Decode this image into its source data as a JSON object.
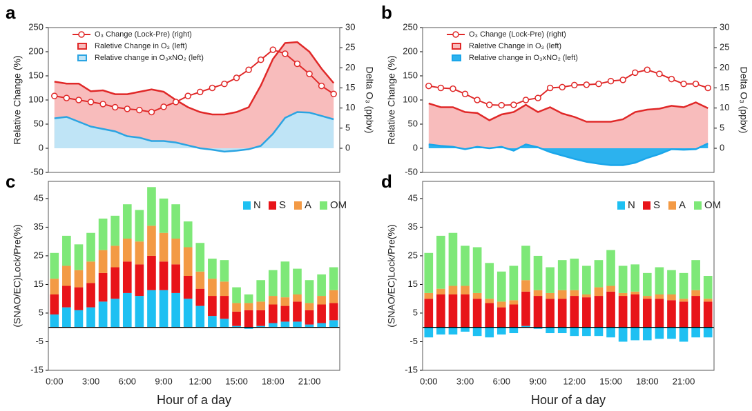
{
  "chart_data": [
    {
      "type": "combo",
      "panel_label": "a",
      "y_label": "Relative Change (%)",
      "y2_label": "Delta O₃ (ppbv)",
      "x": [
        0,
        1,
        2,
        3,
        4,
        5,
        6,
        7,
        8,
        9,
        10,
        11,
        12,
        13,
        14,
        15,
        16,
        17,
        18,
        19,
        20,
        21,
        22,
        23
      ],
      "xlim": [
        -0.5,
        23.5
      ],
      "ylim": [
        -50,
        250
      ],
      "yticks": [
        -50,
        0,
        50,
        100,
        150,
        200,
        250
      ],
      "y2lim": [
        -6,
        30
      ],
      "y2ticks": [
        0,
        5,
        10,
        15,
        20,
        25,
        30
      ],
      "legend": "upper left",
      "series": [
        {
          "name": "O₃ Change (Lock-Pre)  (right)",
          "color": "#e02828",
          "axis": "y2",
          "values": [
            13,
            12.5,
            12,
            11.5,
            11,
            10.2,
            9.8,
            9.5,
            9,
            10.3,
            11.5,
            13,
            14,
            15,
            16,
            17.5,
            19.5,
            22,
            24.5,
            23.5,
            21,
            18.5,
            15.5,
            13.5
          ]
        },
        {
          "name": "Raletive Change in O₃ (left)",
          "color": "#e02828",
          "fill": "#f8bcbc",
          "values": [
            138,
            134,
            134,
            118,
            120,
            112,
            112,
            117,
            122,
            117,
            100,
            85,
            75,
            70,
            70,
            75,
            85,
            130,
            185,
            218,
            220,
            200,
            165,
            135
          ]
        },
        {
          "name": "Relative change in O₃xNO₂ (left)",
          "color": "#2aa4e2",
          "fill": "#bfe4f6",
          "values": [
            62,
            65,
            55,
            45,
            40,
            35,
            25,
            22,
            15,
            15,
            12,
            6,
            0,
            -3,
            -7,
            -5,
            -2,
            5,
            30,
            63,
            75,
            74,
            67,
            60
          ]
        }
      ]
    },
    {
      "type": "combo",
      "panel_label": "b",
      "y_label": "Relative Change (%)",
      "y2_label": "Delta O₃ (ppbv)",
      "x": [
        0,
        1,
        2,
        3,
        4,
        5,
        6,
        7,
        8,
        9,
        10,
        11,
        12,
        13,
        14,
        15,
        16,
        17,
        18,
        19,
        20,
        21,
        22,
        23
      ],
      "xlim": [
        -0.5,
        23.5
      ],
      "ylim": [
        -50,
        250
      ],
      "yticks": [
        -50,
        0,
        50,
        100,
        150,
        200,
        250
      ],
      "y2lim": [
        -6,
        30
      ],
      "y2ticks": [
        0,
        5,
        10,
        15,
        20,
        25,
        30
      ],
      "legend": "upper left",
      "series": [
        {
          "name": "O₃ Change (Lock-Pre)  (right)",
          "color": "#e02828",
          "axis": "y2",
          "values": [
            15.5,
            15,
            14.8,
            13.5,
            12,
            10.8,
            10.7,
            10.8,
            12,
            12.5,
            15,
            15.2,
            15.7,
            15.8,
            16,
            16.7,
            17,
            18.8,
            19.5,
            18.5,
            17.2,
            16,
            16,
            15
          ]
        },
        {
          "name": "Raletive Change in O₃ (left)",
          "color": "#e02828",
          "fill": "#f8bcbc",
          "values": [
            93,
            85,
            85,
            75,
            73,
            58,
            70,
            75,
            90,
            75,
            85,
            72,
            65,
            55,
            55,
            55,
            60,
            75,
            80,
            82,
            88,
            85,
            95,
            83
          ]
        },
        {
          "name": "Relative change in O₃xNO₂ (left)",
          "color": "#1aa6ea",
          "fill": "#2cb2ee",
          "values": [
            8,
            5,
            3,
            -2,
            3,
            0,
            3,
            -5,
            8,
            2,
            -8,
            -15,
            -22,
            -28,
            -32,
            -35,
            -35,
            -30,
            -20,
            -12,
            -2,
            -3,
            -2,
            10
          ]
        }
      ]
    },
    {
      "type": "stacked_bar",
      "panel_label": "c",
      "y_label": "(SNAO/EC)Lock/Pre(%)",
      "x_label": "Hour of a day",
      "categories": [
        "0:00",
        null,
        null,
        "3:00",
        null,
        null,
        "6:00",
        null,
        null,
        "9:00",
        null,
        null,
        "12:00",
        null,
        null,
        "15:00",
        null,
        null,
        "18:00",
        null,
        null,
        "21:00",
        null,
        null
      ],
      "ylim": [
        -15,
        51
      ],
      "yticks": [
        -15,
        -5,
        5,
        15,
        25,
        35,
        45
      ],
      "legend": "upper right",
      "series": [
        {
          "name": "N",
          "color": "#1ec0f2",
          "values": [
            4.5,
            7,
            6,
            7,
            9,
            10,
            12,
            11,
            13,
            13,
            12,
            10,
            7.5,
            4,
            3,
            0.5,
            -0.5,
            0.5,
            1.5,
            2,
            2,
            1,
            1.5,
            2.5
          ]
        },
        {
          "name": "S",
          "color": "#e81419",
          "values": [
            7,
            7.5,
            8,
            8.5,
            10,
            11,
            11,
            11,
            12,
            10,
            10,
            8,
            6,
            7,
            8,
            5,
            6,
            5.5,
            6.5,
            5.5,
            7,
            5,
            6.5,
            6
          ]
        },
        {
          "name": "A",
          "color": "#f39a45",
          "values": [
            5.5,
            7,
            6,
            7.5,
            8,
            7.5,
            8,
            8,
            10.5,
            10,
            9,
            10,
            6,
            6,
            5,
            3,
            2.5,
            3,
            3,
            3,
            2.5,
            2.5,
            3,
            4.5
          ]
        },
        {
          "name": "OM",
          "color": "#7ee878",
          "values": [
            9,
            10.5,
            9,
            10,
            11,
            10.5,
            12,
            11,
            13.5,
            12,
            12,
            9,
            10,
            7,
            7.5,
            5.5,
            3,
            7.5,
            9,
            12.5,
            9,
            8,
            7.5,
            8
          ]
        }
      ]
    },
    {
      "type": "stacked_bar",
      "panel_label": "d",
      "y_label": "(SNAO/EC)Lock/Pre(%)",
      "x_label": "Hour of a day",
      "categories": [
        "0:00",
        null,
        null,
        "3:00",
        null,
        null,
        "6:00",
        null,
        null,
        "9:00",
        null,
        null,
        "12:00",
        null,
        null,
        "15:00",
        null,
        null,
        "18:00",
        null,
        null,
        "21:00",
        null,
        null
      ],
      "ylim": [
        -15,
        51
      ],
      "yticks": [
        -15,
        -5,
        5,
        15,
        25,
        35,
        45
      ],
      "legend": "upper right",
      "series": [
        {
          "name": "N",
          "color": "#1ec0f2",
          "values": [
            -3.5,
            -2.5,
            -2.5,
            -1.5,
            -3,
            -3.5,
            -2.5,
            -2,
            0.5,
            -0.5,
            -2,
            -2,
            -3,
            -3,
            -3,
            -3.5,
            -5,
            -4.5,
            -4.5,
            -4,
            -4,
            -5,
            -3.5,
            -3.5
          ]
        },
        {
          "name": "S",
          "color": "#e81419",
          "values": [
            10,
            11.5,
            11.5,
            11.5,
            10,
            8.5,
            7,
            8,
            12,
            11,
            10,
            10,
            11,
            10.5,
            11,
            12.5,
            11,
            11.5,
            10,
            10,
            9.5,
            9,
            11,
            9
          ]
        },
        {
          "name": "A",
          "color": "#f39a45",
          "values": [
            2,
            2,
            3,
            3,
            2,
            1.5,
            2,
            1.5,
            4,
            2,
            2,
            3,
            2,
            1,
            3,
            2,
            1,
            1,
            1,
            1.5,
            2,
            1,
            2,
            1
          ]
        },
        {
          "name": "OM",
          "color": "#7ee878",
          "values": [
            14,
            18.5,
            18.5,
            14,
            16,
            12.5,
            10.5,
            12,
            12,
            12,
            9,
            10.5,
            11,
            10,
            9.5,
            12.5,
            9.5,
            9.5,
            8,
            9.5,
            8.5,
            9,
            10.5,
            8
          ]
        }
      ]
    }
  ]
}
